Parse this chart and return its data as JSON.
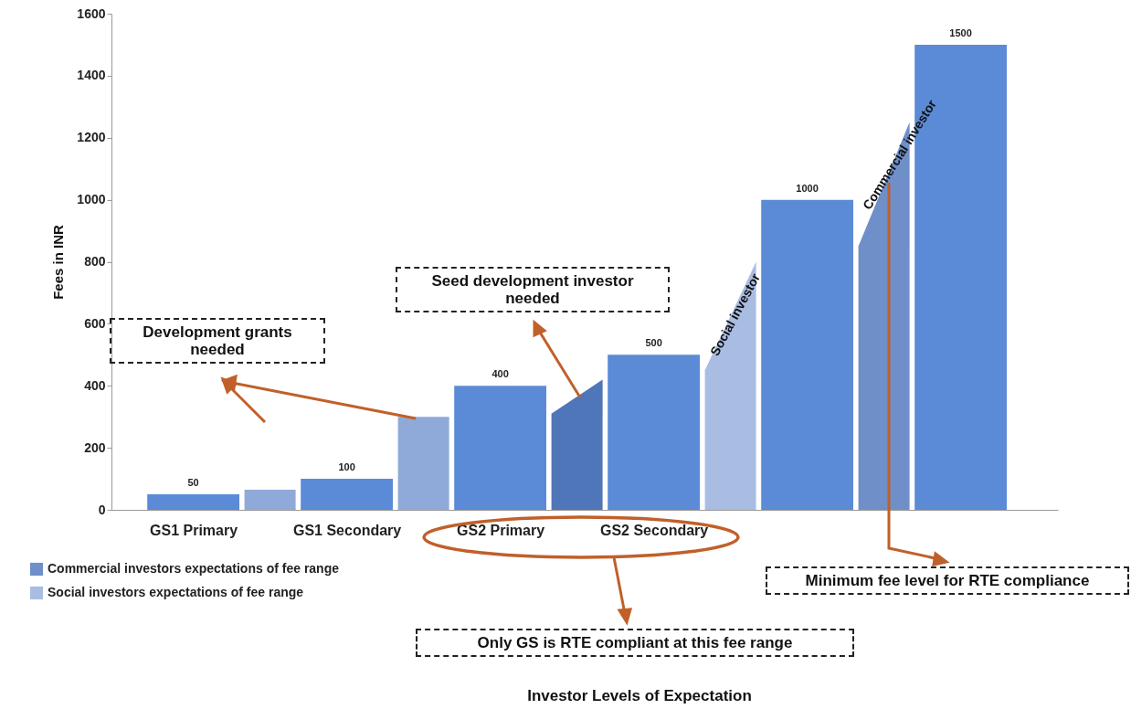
{
  "chart_data": {
    "type": "bar",
    "ylabel": "Fees in INR",
    "categories": [
      "GS1 Primary",
      null,
      null,
      "GS1 Secondary",
      null,
      null,
      "GS2 Primary",
      null,
      null,
      "GS2 Secondary",
      null,
      null,
      null,
      null,
      null,
      null
    ],
    "series": [
      {
        "type": "bar",
        "color": "#5b8bd6",
        "values": [
          50,
          null,
          null,
          100,
          null,
          null,
          400,
          null,
          null,
          500,
          null,
          null,
          1000,
          null,
          null,
          1500
        ],
        "value_labels": [
          "50",
          null,
          null,
          "100",
          null,
          null,
          "400",
          null,
          null,
          "500",
          null,
          null,
          "1000",
          null,
          null,
          "1500"
        ]
      },
      {
        "type": "area",
        "color": "#8faad8",
        "values": [
          null,
          65,
          65,
          null,
          null,
          null,
          null,
          null,
          null,
          null,
          null,
          null,
          null,
          null,
          null,
          null
        ]
      },
      {
        "type": "area",
        "color": "#8faad8",
        "values": [
          null,
          null,
          null,
          null,
          300,
          300,
          null,
          null,
          null,
          null,
          null,
          null,
          null,
          null,
          null,
          null
        ]
      },
      {
        "type": "area",
        "color": "#4f76b8",
        "values": [
          null,
          null,
          null,
          null,
          null,
          null,
          null,
          310,
          420,
          null,
          null,
          null,
          null,
          null,
          null,
          null
        ]
      },
      {
        "type": "area",
        "name": "Social investors expectations of fee range",
        "color": "#a9bde3",
        "values": [
          null,
          null,
          null,
          null,
          null,
          null,
          null,
          null,
          null,
          null,
          450,
          800,
          null,
          null,
          null,
          null
        ]
      },
      {
        "type": "area",
        "name": "Commercial investors expectations of fee range",
        "color": "#6f8fc9",
        "values": [
          null,
          null,
          null,
          null,
          null,
          null,
          null,
          null,
          null,
          null,
          null,
          null,
          null,
          850,
          1250,
          null
        ]
      }
    ],
    "ylim": [
      0,
      1600
    ],
    "yticks": [
      0,
      200,
      400,
      600,
      800,
      1000,
      1200,
      1400,
      1600
    ],
    "legend": "bottom left",
    "annotations": [
      "Development grants needed",
      "Seed development investor needed",
      "Social investor",
      "Commercial investor",
      "Minimum fee level for RTE compliance",
      "Only GS is RTE compliant at this fee range",
      "Investor Levels of Expectation"
    ]
  }
}
